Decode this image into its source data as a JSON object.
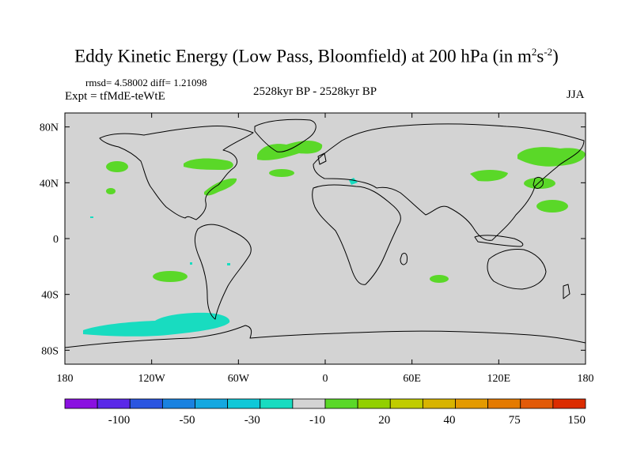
{
  "title": {
    "main": "Eddy Kinetic Energy (Low Pass, Bloomfield) at 200 hPa (in m",
    "sup1": "2",
    "mid": "s",
    "sup2": "-2",
    "close": ")"
  },
  "stats": "rmsd= 4.58002 diff= 1.21098",
  "expt": "Expt = tfMdE-teWtE",
  "period": "2528kyr BP - 2528kyr BP",
  "season": "JJA",
  "map": {
    "lon_range": [
      -180,
      180
    ],
    "lat_range": [
      -90,
      90
    ],
    "land_fill": "#d3d3d3",
    "x_ticks": [
      {
        "value": -180,
        "label": "180"
      },
      {
        "value": -120,
        "label": "120W"
      },
      {
        "value": -60,
        "label": "60W"
      },
      {
        "value": 0,
        "label": "0"
      },
      {
        "value": 60,
        "label": "60E"
      },
      {
        "value": 120,
        "label": "120E"
      },
      {
        "value": 180,
        "label": "180"
      }
    ],
    "y_ticks": [
      {
        "value": 80,
        "label": "80N"
      },
      {
        "value": 40,
        "label": "40N"
      },
      {
        "value": 0,
        "label": "0"
      },
      {
        "value": -40,
        "label": "40S"
      },
      {
        "value": -80,
        "label": "80S"
      }
    ]
  },
  "colorbar": {
    "colors": [
      "#8a10e0",
      "#5a28e8",
      "#2a55e0",
      "#1a82e0",
      "#14a8e0",
      "#10c8d8",
      "#18dcc0",
      "#d3d3d3",
      "#5ad828",
      "#92d000",
      "#c0cc00",
      "#d8b400",
      "#e49a00",
      "#e47a00",
      "#e25a08",
      "#dc2c00"
    ],
    "labels": [
      {
        "boundary": 2,
        "text": "-100"
      },
      {
        "boundary": 4,
        "text": "-50"
      },
      {
        "boundary": 6,
        "text": "-30"
      },
      {
        "boundary": 8,
        "text": "-10"
      },
      {
        "boundary": 10,
        "text": "20"
      },
      {
        "boundary": 12,
        "text": "40"
      },
      {
        "boundary": 14,
        "text": "75"
      },
      {
        "boundary": 16,
        "text": "150"
      }
    ]
  }
}
